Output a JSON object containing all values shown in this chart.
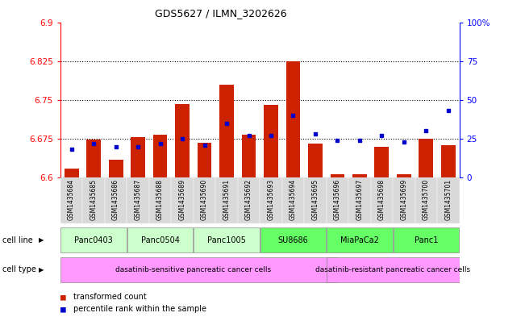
{
  "title": "GDS5627 / ILMN_3202626",
  "samples": [
    "GSM1435684",
    "GSM1435685",
    "GSM1435686",
    "GSM1435687",
    "GSM1435688",
    "GSM1435689",
    "GSM1435690",
    "GSM1435691",
    "GSM1435692",
    "GSM1435693",
    "GSM1435694",
    "GSM1435695",
    "GSM1435696",
    "GSM1435697",
    "GSM1435698",
    "GSM1435699",
    "GSM1435700",
    "GSM1435701"
  ],
  "bar_values": [
    6.617,
    6.673,
    6.635,
    6.678,
    6.683,
    6.742,
    6.667,
    6.78,
    6.683,
    6.74,
    6.825,
    6.665,
    6.607,
    6.607,
    6.66,
    6.607,
    6.675,
    6.663
  ],
  "blue_values": [
    18,
    22,
    20,
    20,
    22,
    25,
    21,
    35,
    27,
    27,
    40,
    28,
    24,
    24,
    27,
    23,
    30,
    43
  ],
  "ylim_left": [
    6.6,
    6.9
  ],
  "ylim_right": [
    0,
    100
  ],
  "yticks_left": [
    6.6,
    6.675,
    6.75,
    6.825,
    6.9
  ],
  "yticks_right": [
    0,
    25,
    50,
    75,
    100
  ],
  "ytick_labels_right": [
    "0",
    "25",
    "50",
    "75",
    "100%"
  ],
  "ytick_labels_left": [
    "6.6",
    "6.675",
    "6.75",
    "6.825",
    "6.9"
  ],
  "hlines": [
    6.675,
    6.75,
    6.825
  ],
  "cell_lines": [
    {
      "label": "Panc0403",
      "start": 0,
      "end": 2
    },
    {
      "label": "Panc0504",
      "start": 3,
      "end": 5
    },
    {
      "label": "Panc1005",
      "start": 6,
      "end": 8
    },
    {
      "label": "SU8686",
      "start": 9,
      "end": 11
    },
    {
      "label": "MiaPaCa2",
      "start": 12,
      "end": 14
    },
    {
      "label": "Panc1",
      "start": 15,
      "end": 17
    }
  ],
  "cell_line_colors": {
    "Panc0403": "#ccffcc",
    "Panc0504": "#ccffcc",
    "Panc1005": "#ccffcc",
    "SU8686": "#66ff66",
    "MiaPaCa2": "#66ff66",
    "Panc1": "#66ff66"
  },
  "cell_type_sensitive_label": "dasatinib-sensitive pancreatic cancer cells",
  "cell_type_resistant_label": "dasatinib-resistant pancreatic cancer cells",
  "cell_type_color": "#ff99ff",
  "bar_color": "#cc2200",
  "blue_color": "#0000cc",
  "sample_bg_color": "#cccccc",
  "legend_bar_label": "transformed count",
  "legend_blue_label": "percentile rank within the sample",
  "cell_line_row_label": "cell line",
  "cell_type_row_label": "cell type"
}
